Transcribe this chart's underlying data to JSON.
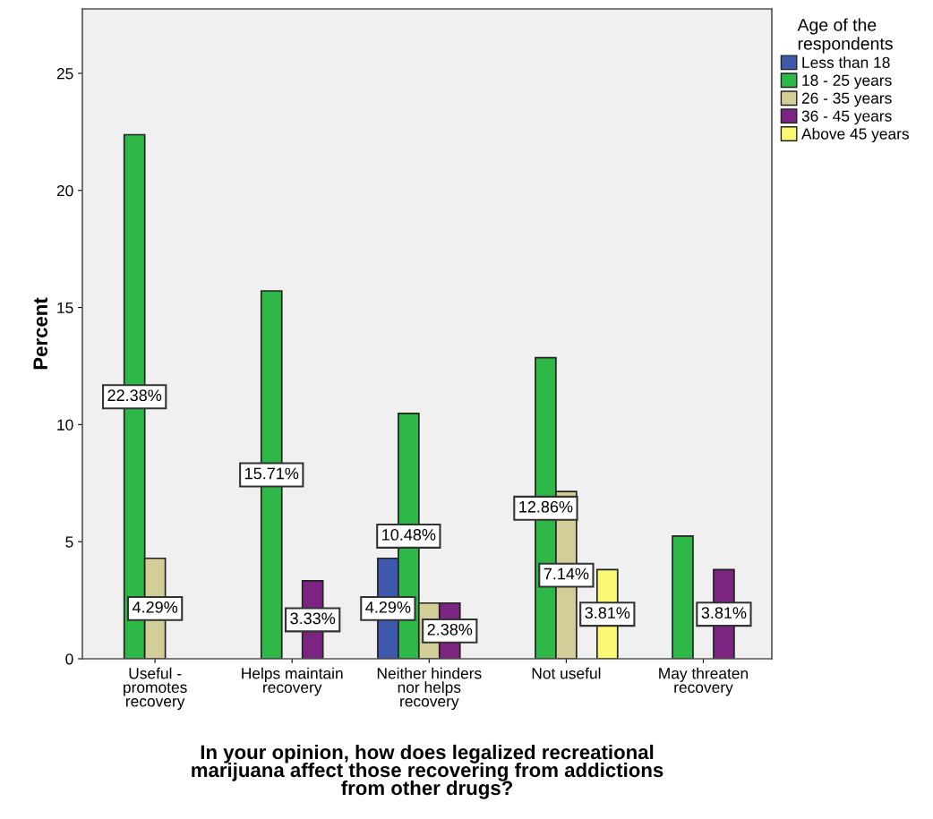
{
  "chart_data": {
    "type": "bar",
    "xlabel": "In your opinion, how does legalized recreational\nmarijuana affect those recovering from addictions\nfrom other drugs?",
    "ylabel": "Percent",
    "legend_title": "Age of the\nrespondents",
    "categories": [
      "Useful -\npromotes\nrecovery",
      "Helps maintain\nrecovery",
      "Neither hinders\nnor helps\nrecovery",
      "Not useful",
      "May threaten\nrecovery"
    ],
    "series": [
      {
        "name": "Less than 18",
        "color": "#3e58ac",
        "values": [
          null,
          null,
          4.29,
          null,
          null
        ],
        "value_labels": [
          null,
          null,
          "4.29%",
          null,
          null
        ]
      },
      {
        "name": "18 - 25 years",
        "color": "#2eb848",
        "values": [
          22.38,
          15.71,
          10.48,
          12.86,
          5.24
        ],
        "value_labels": [
          "22.38%",
          "15.71%",
          "10.48%",
          "12.86%",
          null
        ]
      },
      {
        "name": "26 - 35 years",
        "color": "#d3ce97",
        "values": [
          4.29,
          null,
          2.38,
          7.14,
          null
        ],
        "value_labels": [
          "4.29%",
          null,
          null,
          "7.14%",
          null
        ]
      },
      {
        "name": "36 - 45 years",
        "color": "#7b2481",
        "values": [
          null,
          3.33,
          2.38,
          null,
          3.81
        ],
        "value_labels": [
          null,
          "3.33%",
          "2.38%",
          null,
          "3.81%"
        ]
      },
      {
        "name": "Above 45 years",
        "color": "#fbf873",
        "values": [
          null,
          null,
          null,
          3.81,
          null
        ],
        "value_labels": [
          null,
          null,
          null,
          "3.81%",
          null
        ]
      }
    ],
    "ylim": [
      0,
      27.75
    ],
    "yticks": [
      0,
      5,
      10,
      15,
      20,
      25
    ],
    "grid": false,
    "legend": "top right"
  }
}
